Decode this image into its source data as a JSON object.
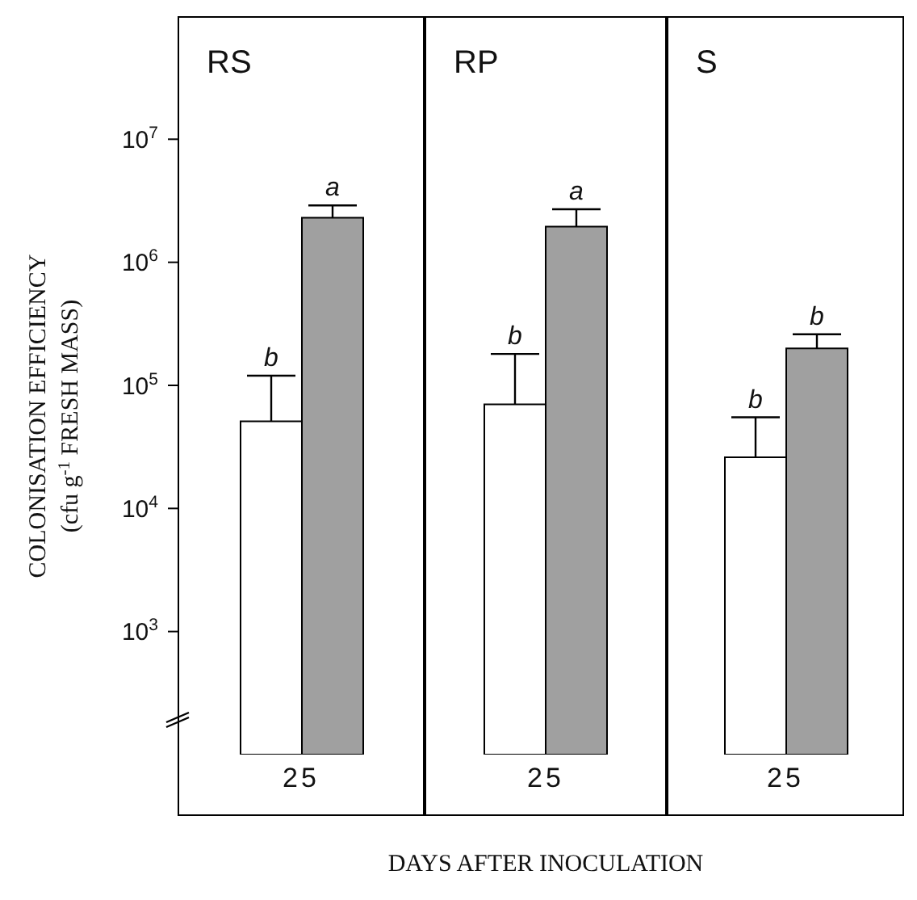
{
  "chart_data": [
    {
      "type": "bar",
      "title": "RS",
      "ylabel": "COLONISATION EFFICIENCY\n(cfu g$^{-1}$ FRESH MASS)",
      "categories": [
        "25"
      ],
      "log": "y",
      "ylim": [
        100,
        100000000
      ],
      "yticks": [
        {
          "value": 1000,
          "label": "10$^{3}$"
        },
        {
          "value": 10000,
          "label": "10$^{4}$"
        },
        {
          "value": 100000,
          "label": "10$^{5}$"
        },
        {
          "value": 1000000,
          "label": "10$^{6}$"
        },
        {
          "value": 10000000,
          "label": "10$^{7}$"
        }
      ],
      "series": [
        {
          "color": "#ffffff",
          "values": [
            51000
          ],
          "errors": [
            [
              51000,
              120000
            ]
          ]
        },
        {
          "color": "#a0a0a0",
          "values": [
            2300000
          ],
          "errors": [
            [
              2300000,
              2900000
            ]
          ]
        }
      ],
      "annotations": [
        "b",
        "a"
      ]
    },
    {
      "type": "bar",
      "title": "RP",
      "xlabel": "DAYS AFTER INOCULATION",
      "categories": [
        "25"
      ],
      "log": "y",
      "ylim": [
        100,
        100000000
      ],
      "tick_labels": "x",
      "series": [
        {
          "color": "#ffffff",
          "values": [
            70000
          ],
          "errors": [
            [
              70000,
              180000
            ]
          ]
        },
        {
          "color": "#a0a0a0",
          "values": [
            1950000
          ],
          "errors": [
            [
              1950000,
              2700000
            ]
          ]
        }
      ],
      "annotations": [
        "b",
        "a"
      ]
    },
    {
      "type": "bar",
      "title": "S",
      "categories": [
        "25"
      ],
      "log": "y",
      "ylim": [
        100,
        100000000
      ],
      "tick_labels": "x",
      "series": [
        {
          "color": "#ffffff",
          "values": [
            26000
          ],
          "errors": [
            [
              26000,
              55000
            ]
          ]
        },
        {
          "color": "#a0a0a0",
          "values": [
            200000
          ],
          "errors": [
            [
              200000,
              260000
            ]
          ]
        }
      ],
      "annotations": [
        "b",
        "b"
      ]
    }
  ]
}
